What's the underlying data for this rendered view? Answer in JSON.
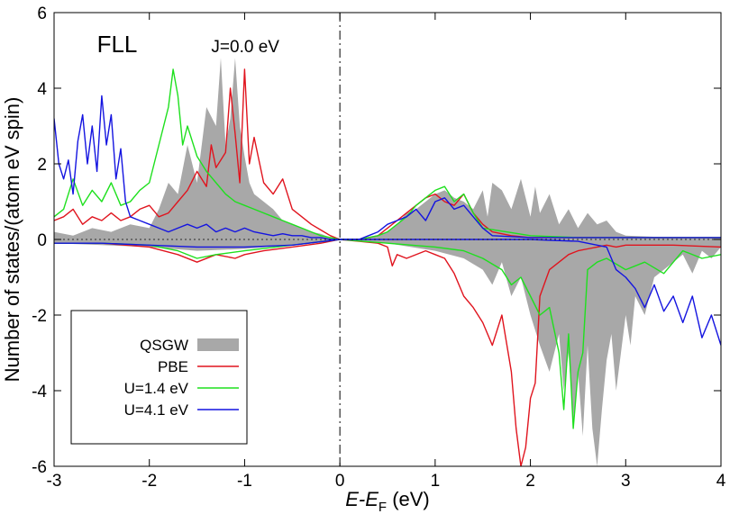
{
  "chart_data": {
    "type": "line",
    "title": "",
    "xlabel": {
      "main": "E-E",
      "sub": "F",
      "unit": " (eV)"
    },
    "ylabel": "Number of states/(atom eV spin)",
    "xlim": [
      -3,
      4
    ],
    "ylim": [
      -6,
      6
    ],
    "xticks": [
      -3,
      -2,
      -1,
      0,
      1,
      2,
      3,
      4
    ],
    "yticks": [
      -6,
      -4,
      -2,
      0,
      2,
      4,
      6
    ],
    "annotations": [
      {
        "text": "FLL",
        "x": -2.55,
        "y": 4.95
      },
      {
        "text": "J=0.0 eV",
        "x": -1.35,
        "y": 4.95
      }
    ],
    "legend_position": "bottom-left",
    "fermi_line_x": 0,
    "colors": {
      "QSGW": "#a8a8a8",
      "PBE": "#e0141e",
      "U=1.4 eV": "#1ee01e",
      "U=4.1 eV": "#1414e0"
    },
    "series": [
      {
        "name": "QSGW",
        "style": "filled",
        "up": {
          "x": [
            -3.0,
            -2.8,
            -2.6,
            -2.4,
            -2.2,
            -2.0,
            -1.9,
            -1.8,
            -1.7,
            -1.6,
            -1.5,
            -1.4,
            -1.3,
            -1.25,
            -1.2,
            -1.15,
            -1.1,
            -1.05,
            -1.0,
            -0.95,
            -0.9,
            -0.8,
            -0.7,
            -0.6,
            -0.5,
            -0.4,
            -0.3,
            -0.2,
            -0.1,
            0.0,
            0.1,
            0.2,
            0.3,
            0.4,
            0.5,
            0.6,
            0.7,
            0.8,
            0.9,
            1.0,
            1.1,
            1.2,
            1.3,
            1.4,
            1.5,
            1.55,
            1.6,
            1.7,
            1.8,
            1.9,
            2.0,
            2.05,
            2.1,
            2.2,
            2.3,
            2.4,
            2.5,
            2.6,
            2.7,
            2.8,
            2.9,
            3.0,
            3.5,
            4.0
          ],
          "y": [
            0.2,
            0.1,
            0.3,
            0.2,
            0.4,
            0.3,
            0.8,
            1.5,
            1.2,
            2.5,
            1.5,
            3.5,
            3.0,
            4.8,
            2.5,
            3.2,
            4.8,
            3.0,
            2.2,
            1.5,
            1.2,
            1.0,
            0.8,
            0.5,
            0.4,
            0.3,
            0.2,
            0.15,
            0.05,
            0.0,
            0.0,
            0.0,
            0.05,
            0.1,
            0.2,
            0.4,
            0.7,
            0.8,
            1.0,
            1.2,
            1.3,
            1.1,
            1.0,
            0.8,
            1.3,
            0.6,
            1.5,
            1.3,
            0.8,
            1.6,
            0.6,
            1.4,
            0.7,
            1.2,
            0.4,
            0.8,
            0.3,
            0.7,
            0.4,
            0.5,
            0.2,
            0.1,
            0.05,
            0.05
          ]
        },
        "down": {
          "x": [
            -3.0,
            -2.5,
            -2.0,
            -1.5,
            -1.0,
            -0.5,
            0.0,
            0.5,
            1.0,
            1.3,
            1.5,
            1.6,
            1.7,
            1.8,
            1.9,
            2.0,
            2.1,
            2.2,
            2.3,
            2.35,
            2.4,
            2.45,
            2.5,
            2.55,
            2.6,
            2.65,
            2.7,
            2.75,
            2.8,
            2.85,
            2.9,
            2.95,
            3.0,
            3.05,
            3.1,
            3.2,
            3.3,
            3.4,
            3.5,
            3.6,
            3.7,
            3.8,
            3.9,
            4.0
          ],
          "y": [
            -0.1,
            -0.15,
            -0.2,
            -0.3,
            -0.25,
            -0.15,
            0.0,
            -0.1,
            -0.3,
            -0.5,
            -0.8,
            -1.2,
            -0.6,
            -1.5,
            -1.0,
            -2.0,
            -2.8,
            -3.5,
            -2.5,
            -4.0,
            -3.0,
            -4.8,
            -3.5,
            -5.2,
            -2.8,
            -5.0,
            -6.0,
            -4.5,
            -3.2,
            -2.5,
            -4.0,
            -3.0,
            -2.0,
            -2.8,
            -1.5,
            -2.0,
            -1.0,
            -0.8,
            -0.6,
            -0.4,
            -0.9,
            -0.3,
            -0.5,
            -0.2
          ]
        }
      },
      {
        "name": "PBE",
        "style": "line",
        "up": {
          "x": [
            -3.0,
            -2.9,
            -2.8,
            -2.7,
            -2.6,
            -2.5,
            -2.4,
            -2.3,
            -2.2,
            -2.1,
            -2.0,
            -1.9,
            -1.8,
            -1.7,
            -1.6,
            -1.5,
            -1.4,
            -1.35,
            -1.3,
            -1.2,
            -1.15,
            -1.1,
            -1.05,
            -1.0,
            -0.95,
            -0.9,
            -0.8,
            -0.7,
            -0.6,
            -0.5,
            -0.4,
            -0.3,
            -0.2,
            -0.1,
            0.0,
            0.1,
            0.2,
            0.3,
            0.4,
            0.5,
            0.6,
            0.7,
            0.8,
            0.9,
            1.0,
            1.1,
            1.2,
            1.3,
            1.4,
            1.5,
            1.6,
            1.7,
            1.8,
            2.0,
            2.5,
            3.0,
            3.5,
            4.0
          ],
          "y": [
            0.5,
            0.6,
            0.8,
            0.4,
            0.6,
            0.5,
            0.7,
            0.5,
            0.6,
            0.8,
            0.9,
            0.6,
            0.7,
            1.0,
            1.3,
            1.8,
            1.4,
            2.5,
            1.9,
            2.3,
            4.0,
            2.8,
            1.5,
            4.5,
            2.0,
            2.7,
            1.5,
            1.2,
            1.6,
            0.8,
            0.6,
            0.4,
            0.25,
            0.1,
            0.0,
            0.0,
            0.0,
            0.05,
            0.1,
            0.3,
            0.5,
            0.7,
            0.9,
            1.1,
            1.2,
            1.0,
            0.9,
            1.2,
            0.7,
            0.4,
            0.2,
            0.15,
            0.1,
            0.05,
            0.05,
            0.05,
            0.05,
            0.05
          ]
        },
        "down": {
          "x": [
            -3.0,
            -2.5,
            -2.0,
            -1.7,
            -1.5,
            -1.3,
            -1.1,
            -1.0,
            -0.8,
            -0.5,
            -0.2,
            0.0,
            0.2,
            0.4,
            0.5,
            0.55,
            0.6,
            0.7,
            0.9,
            1.0,
            1.1,
            1.2,
            1.3,
            1.4,
            1.5,
            1.6,
            1.7,
            1.8,
            1.85,
            1.9,
            1.95,
            2.0,
            2.05,
            2.1,
            2.2,
            2.3,
            2.4,
            2.5,
            2.6,
            2.7,
            2.8,
            2.9,
            3.0,
            3.5,
            4.0
          ],
          "y": [
            -0.1,
            -0.1,
            -0.2,
            -0.4,
            -0.6,
            -0.4,
            -0.5,
            -0.4,
            -0.3,
            -0.2,
            -0.1,
            0.0,
            -0.05,
            -0.1,
            -0.2,
            -0.7,
            -0.4,
            -0.5,
            -0.3,
            -0.4,
            -0.5,
            -0.9,
            -1.5,
            -1.8,
            -2.2,
            -2.8,
            -2.0,
            -3.5,
            -5.0,
            -6.0,
            -5.5,
            -4.2,
            -3.8,
            -1.5,
            -0.8,
            -0.6,
            -0.4,
            -0.3,
            -0.25,
            -0.2,
            -0.15,
            -0.2,
            -0.15,
            -0.15,
            -0.2
          ]
        }
      },
      {
        "name": "U=1.4 eV",
        "style": "line",
        "up": {
          "x": [
            -3.0,
            -2.9,
            -2.8,
            -2.7,
            -2.6,
            -2.5,
            -2.4,
            -2.3,
            -2.2,
            -2.1,
            -2.0,
            -1.9,
            -1.8,
            -1.75,
            -1.7,
            -1.65,
            -1.6,
            -1.5,
            -1.4,
            -1.3,
            -1.2,
            -1.1,
            -1.0,
            -0.9,
            -0.8,
            -0.7,
            -0.6,
            -0.5,
            -0.4,
            -0.3,
            -0.2,
            -0.1,
            0.0,
            0.1,
            0.2,
            0.3,
            0.4,
            0.5,
            0.6,
            0.7,
            0.8,
            0.9,
            1.0,
            1.1,
            1.2,
            1.3,
            1.4,
            1.5,
            2.0,
            2.5,
            3.0,
            3.5,
            4.0
          ],
          "y": [
            0.6,
            0.8,
            1.6,
            0.9,
            1.3,
            1.0,
            1.5,
            0.9,
            1.0,
            1.3,
            1.5,
            2.5,
            3.5,
            4.5,
            3.8,
            2.5,
            3.0,
            2.2,
            1.8,
            1.5,
            1.2,
            1.0,
            0.9,
            0.8,
            0.7,
            0.6,
            0.5,
            0.4,
            0.3,
            0.2,
            0.1,
            0.05,
            0.0,
            0.0,
            0.0,
            0.05,
            0.1,
            0.2,
            0.4,
            0.6,
            0.9,
            1.1,
            1.3,
            1.4,
            1.0,
            1.2,
            0.7,
            0.3,
            0.1,
            0.05,
            0.05,
            0.05,
            0.05
          ]
        },
        "down": {
          "x": [
            -3.0,
            -2.5,
            -2.0,
            -1.7,
            -1.5,
            -1.3,
            -1.0,
            -0.5,
            0.0,
            0.5,
            1.0,
            1.3,
            1.5,
            1.7,
            1.8,
            1.9,
            2.0,
            2.1,
            2.2,
            2.3,
            2.35,
            2.4,
            2.45,
            2.5,
            2.55,
            2.6,
            2.7,
            2.8,
            3.0,
            3.2,
            3.4,
            3.6,
            3.8,
            4.0
          ],
          "y": [
            -0.1,
            -0.1,
            -0.15,
            -0.3,
            -0.5,
            -0.4,
            -0.3,
            -0.15,
            0.0,
            -0.1,
            -0.2,
            -0.3,
            -0.5,
            -0.8,
            -1.2,
            -1.0,
            -1.5,
            -2.0,
            -1.8,
            -3.0,
            -4.5,
            -2.5,
            -5.0,
            -3.5,
            -3.0,
            -0.8,
            -0.6,
            -0.5,
            -0.8,
            -0.6,
            -0.9,
            -0.3,
            -0.5,
            -0.4
          ]
        }
      },
      {
        "name": "U=4.1 eV",
        "style": "line",
        "up": {
          "x": [
            -3.0,
            -2.95,
            -2.9,
            -2.85,
            -2.8,
            -2.75,
            -2.7,
            -2.65,
            -2.6,
            -2.55,
            -2.5,
            -2.45,
            -2.4,
            -2.35,
            -2.3,
            -2.25,
            -2.2,
            -2.1,
            -2.0,
            -1.9,
            -1.8,
            -1.7,
            -1.6,
            -1.5,
            -1.4,
            -1.3,
            -1.2,
            -1.1,
            -1.0,
            -0.9,
            -0.8,
            -0.7,
            -0.6,
            -0.5,
            -0.4,
            -0.3,
            -0.2,
            -0.1,
            0.0,
            0.1,
            0.2,
            0.3,
            0.4,
            0.5,
            0.6,
            0.7,
            0.8,
            0.9,
            1.0,
            1.1,
            1.2,
            1.3,
            1.4,
            1.5,
            1.6,
            2.0,
            2.5,
            3.0,
            3.5,
            4.0
          ],
          "y": [
            3.2,
            2.0,
            1.6,
            2.1,
            1.2,
            2.6,
            3.3,
            2.0,
            3.0,
            1.8,
            3.8,
            2.5,
            3.3,
            1.6,
            2.4,
            1.0,
            0.6,
            0.5,
            0.4,
            0.3,
            0.2,
            0.3,
            0.4,
            0.3,
            0.4,
            0.2,
            0.3,
            0.2,
            0.3,
            0.2,
            0.15,
            0.1,
            0.15,
            0.1,
            0.1,
            0.05,
            0.05,
            0.0,
            0.0,
            0.0,
            0.0,
            0.1,
            0.2,
            0.4,
            0.5,
            0.6,
            0.8,
            0.5,
            1.0,
            1.1,
            0.8,
            0.9,
            0.6,
            0.3,
            0.1,
            0.05,
            0.05,
            0.05,
            0.05,
            0.05
          ]
        },
        "down": {
          "x": [
            -3.0,
            -2.5,
            -2.0,
            -1.5,
            -1.0,
            -0.5,
            0.0,
            0.5,
            1.0,
            1.5,
            2.0,
            2.5,
            2.8,
            2.9,
            3.0,
            3.1,
            3.2,
            3.3,
            3.4,
            3.5,
            3.6,
            3.7,
            3.8,
            3.9,
            4.0
          ],
          "y": [
            -0.1,
            -0.1,
            -0.15,
            -0.2,
            -0.2,
            -0.15,
            0.0,
            0.0,
            0.0,
            0.0,
            0.0,
            -0.05,
            -0.2,
            -0.8,
            -1.0,
            -1.3,
            -1.8,
            -1.2,
            -1.9,
            -1.5,
            -2.2,
            -1.5,
            -2.6,
            -2.0,
            -2.8
          ]
        }
      }
    ]
  }
}
